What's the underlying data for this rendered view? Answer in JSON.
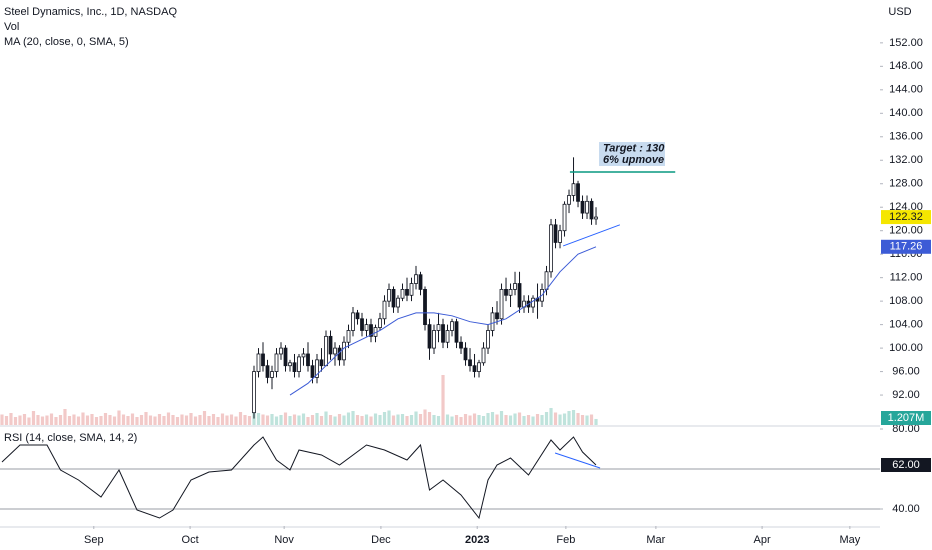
{
  "chart_data": {
    "type": "candlestick",
    "title": "Steel Dynamics, Inc., 1D, NASDAQ",
    "volume_label": "Vol",
    "ma_label": "MA (20, close, 0, SMA, 5)",
    "currency": "USD",
    "up_color": "#ffffff",
    "down_color": "#131722",
    "xlim": [
      -0.44,
      195.1
    ],
    "xticks": [
      {
        "value": 20.4,
        "label": "Sep"
      },
      {
        "value": 41.8,
        "label": "Oct"
      },
      {
        "value": 62.7,
        "label": "Nov"
      },
      {
        "value": 84.2,
        "label": "Dec"
      },
      {
        "value": 105.6,
        "label": "2023"
      },
      {
        "value": 125.3,
        "label": "Feb"
      },
      {
        "value": 145.3,
        "label": "Mar"
      },
      {
        "value": 168.9,
        "label": "Apr"
      },
      {
        "value": 188.4,
        "label": "May"
      }
    ],
    "ylim": [
      86.9,
      159.3
    ],
    "yticks": [
      {
        "value": 92,
        "label": "92.00"
      },
      {
        "value": 96,
        "label": "96.00"
      },
      {
        "value": 100,
        "label": "100.00"
      },
      {
        "value": 104,
        "label": "104.00"
      },
      {
        "value": 108,
        "label": "108.00"
      },
      {
        "value": 112,
        "label": "112.00"
      },
      {
        "value": 116,
        "label": "116.00"
      },
      {
        "value": 120,
        "label": "120.00"
      },
      {
        "value": 124,
        "label": "124.00"
      },
      {
        "value": 128,
        "label": "128.00"
      },
      {
        "value": 132,
        "label": "132.00"
      },
      {
        "value": 136,
        "label": "136.00"
      },
      {
        "value": 140,
        "label": "140.00"
      },
      {
        "value": 144,
        "label": "144.00"
      },
      {
        "value": 148,
        "label": "148.00"
      },
      {
        "value": 152,
        "label": "152.00"
      }
    ],
    "x": [
      56,
      57,
      58,
      59,
      60,
      61,
      62,
      63,
      64,
      65,
      66,
      67,
      68,
      69,
      70,
      71,
      72,
      73,
      74,
      75,
      76,
      77,
      78,
      79,
      80,
      81,
      82,
      83,
      84,
      85,
      86,
      87,
      88,
      89,
      90,
      91,
      92,
      93,
      94,
      95,
      96,
      97,
      98,
      99,
      100,
      101,
      102,
      103,
      104,
      105,
      106,
      107,
      108,
      109,
      110,
      111,
      112,
      113,
      114,
      115,
      116,
      117,
      118,
      119,
      120,
      121,
      122,
      123,
      124,
      125,
      126,
      127,
      128,
      129,
      130,
      131,
      132
    ],
    "open": [
      89,
      96,
      99,
      97,
      95,
      96,
      99,
      100,
      97,
      97.5,
      96,
      98.5,
      99,
      97,
      95,
      98,
      97,
      102,
      99,
      100,
      98,
      101,
      103,
      106,
      105,
      103,
      104,
      102,
      103.5,
      105,
      108,
      110,
      107,
      108.5,
      110,
      109,
      111,
      112.5,
      110,
      104,
      100,
      103,
      104,
      101,
      103,
      104.5,
      101,
      100,
      98,
      97,
      96,
      97.5,
      100,
      103,
      106,
      105,
      110,
      109,
      110,
      111,
      107,
      108,
      107,
      108.5,
      108,
      110,
      113,
      121,
      118,
      120,
      124.5,
      126,
      128,
      125,
      123,
      125,
      122
    ],
    "high": [
      97,
      100,
      101,
      98,
      97,
      100,
      101,
      100.5,
      98,
      99,
      99,
      100,
      101,
      98,
      99,
      100,
      103,
      103,
      101,
      100.5,
      102,
      104,
      107,
      106.5,
      106,
      105,
      105,
      104,
      106,
      109,
      111,
      110.5,
      109,
      111,
      112,
      112,
      114,
      113,
      110.5,
      105,
      104,
      106,
      105,
      104,
      105,
      105,
      102,
      101,
      100,
      99,
      98,
      101,
      104,
      107,
      108,
      111,
      112,
      111,
      113,
      113,
      109,
      109,
      109,
      111,
      111,
      114,
      122,
      122,
      121,
      125,
      127,
      132.5,
      128.5,
      126,
      126,
      125.5,
      124
    ],
    "low": [
      88,
      95,
      96,
      94,
      93,
      95,
      98,
      96,
      96,
      95,
      95,
      97,
      96,
      94,
      94,
      96,
      97,
      98,
      97,
      97,
      97,
      100,
      102,
      104,
      102,
      102,
      101,
      101,
      103,
      104,
      107,
      106,
      106,
      108,
      108,
      108,
      110,
      109,
      103,
      98,
      99,
      101,
      100,
      100,
      102,
      100,
      99,
      97,
      96,
      95,
      95,
      97,
      99,
      102,
      104,
      104,
      108,
      107,
      109,
      106,
      106,
      106,
      106,
      105,
      107,
      109,
      112,
      117,
      117,
      119,
      123,
      125,
      124,
      122,
      122,
      121,
      121
    ],
    "close": [
      96,
      99,
      97,
      95,
      96,
      99,
      100,
      97,
      97.5,
      96,
      98.5,
      99,
      97,
      95,
      98,
      97,
      102,
      99,
      100,
      98,
      101,
      103,
      106,
      105,
      103,
      104,
      102,
      103.5,
      105,
      108,
      110,
      107,
      108.5,
      110,
      109,
      111,
      112.5,
      110,
      104,
      100,
      103,
      104,
      101,
      103,
      104.5,
      101,
      100,
      98,
      97,
      96,
      97.5,
      100,
      103,
      106,
      105,
      110,
      109,
      110,
      111,
      107,
      108,
      107,
      108.5,
      108,
      110,
      113,
      121,
      118,
      120,
      124.5,
      126,
      128,
      125,
      123,
      125,
      122,
      122.32
    ],
    "ma": {
      "color": "#3c5bd6",
      "x": [
        64,
        68,
        72,
        76,
        80,
        84,
        88,
        92,
        96,
        100,
        104,
        108,
        112,
        116,
        120,
        124,
        128,
        132
      ],
      "values": [
        92,
        94,
        97,
        100,
        101.5,
        103,
        105,
        106,
        106,
        105.5,
        104.5,
        104,
        105,
        107,
        109,
        113,
        116,
        117.26
      ]
    },
    "last_price_color": "#f5e600",
    "volume": {
      "color": "#f2c9c8",
      "up_color": "#bfe3dc",
      "down_color": "#f2c9c8",
      "last_color": "#26a69a",
      "vlim": [
        0,
        85
      ],
      "last_label": "1.207M",
      "x": [
        0,
        1,
        2,
        3,
        4,
        5,
        6,
        7,
        8,
        9,
        10,
        11,
        12,
        13,
        14,
        15,
        16,
        17,
        18,
        19,
        20,
        21,
        22,
        23,
        24,
        25,
        26,
        27,
        28,
        29,
        30,
        31,
        32,
        33,
        34,
        35,
        36,
        37,
        38,
        39,
        40,
        41,
        42,
        43,
        44,
        45,
        46,
        47,
        48,
        49,
        50,
        51,
        52,
        53,
        54,
        55,
        56,
        57,
        58,
        59,
        60,
        61,
        62,
        63,
        64,
        65,
        66,
        67,
        68,
        69,
        70,
        71,
        72,
        73,
        74,
        75,
        76,
        77,
        78,
        79,
        80,
        81,
        82,
        83,
        84,
        85,
        86,
        87,
        88,
        89,
        90,
        91,
        92,
        93,
        94,
        95,
        96,
        97,
        98,
        99,
        100,
        101,
        102,
        103,
        104,
        105,
        106,
        107,
        108,
        109,
        110,
        111,
        112,
        113,
        114,
        115,
        116,
        117,
        118,
        119,
        120,
        121,
        122,
        123,
        124,
        125,
        126,
        127,
        128,
        129,
        130,
        131,
        132
      ],
      "values": [
        2.1,
        1.8,
        2.4,
        1.6,
        1.9,
        2.2,
        1.5,
        2.8,
        2.0,
        1.7,
        1.9,
        2.3,
        1.6,
        2.0,
        3.2,
        1.8,
        2.1,
        1.7,
        2.5,
        1.9,
        2.2,
        1.6,
        1.8,
        2.4,
        2.0,
        1.7,
        2.9,
        2.1,
        1.8,
        2.3,
        1.6,
        2.0,
        2.6,
        1.9,
        1.7,
        2.2,
        1.8,
        2.5,
        2.0,
        1.6,
        2.1,
        1.9,
        2.4,
        1.7,
        2.0,
        2.8,
        1.8,
        2.2,
        1.6,
        2.3,
        1.9,
        2.1,
        1.7,
        2.6,
        2.0,
        1.8,
        3.0,
        2.4,
        2.1,
        1.9,
        2.2,
        1.7,
        2.0,
        2.5,
        1.8,
        2.1,
        1.9,
        2.3,
        1.6,
        2.0,
        2.4,
        1.8,
        2.7,
        2.0,
        1.7,
        2.2,
        1.9,
        2.5,
        2.8,
        2.0,
        1.8,
        2.1,
        1.7,
        2.3,
        2.0,
        2.6,
        2.9,
        1.9,
        2.1,
        2.2,
        1.8,
        2.0,
        2.7,
        2.2,
        3.1,
        2.6,
        2.0,
        1.8,
        10.0,
        2.1,
        1.7,
        2.0,
        1.6,
        2.2,
        1.9,
        2.3,
        2.0,
        1.8,
        2.4,
        2.6,
        2.1,
        2.8,
        2.0,
        1.9,
        2.3,
        2.5,
        1.8,
        2.0,
        1.7,
        2.2,
        2.0,
        2.6,
        3.4,
        2.5,
        2.1,
        2.3,
        2.8,
        3.0,
        2.4,
        2.0,
        1.9,
        2.1,
        1.207
      ]
    },
    "target": {
      "text": "Target : 130",
      "subtext": "6% upmove",
      "level": 130,
      "x": [
        126.2,
        149.6
      ],
      "color": "#089981",
      "box_color": "#c8dbef"
    },
    "trendline": {
      "color": "#2962ff",
      "x": [
        124.7,
        137.3
      ],
      "y": [
        117.4,
        121.0
      ]
    },
    "rsi": {
      "label": "RSI (14, close, SMA, 14, 2)",
      "color": "#131722",
      "ylim": [
        32,
        80.5
      ],
      "yticks": [
        {
          "value": 80,
          "label": "80.00"
        },
        {
          "value": 40,
          "label": "40.00"
        }
      ],
      "bands": [
        60,
        40
      ],
      "x": [
        0,
        4,
        10,
        13,
        17,
        22,
        26,
        30,
        35,
        38,
        42,
        46,
        51,
        56,
        58,
        61,
        64,
        66,
        71,
        75,
        81,
        85,
        90,
        93,
        95,
        98,
        102,
        106,
        108,
        110,
        113,
        117,
        122,
        124,
        127,
        129,
        132
      ],
      "values": [
        63.5,
        72,
        72,
        59.5,
        54.5,
        46,
        59.5,
        39.5,
        35.5,
        39.5,
        54.5,
        58.5,
        59.5,
        72,
        76,
        64.5,
        59.5,
        69.5,
        67,
        62,
        72,
        69.5,
        64.5,
        72,
        49.5,
        54.5,
        47,
        35.5,
        54.5,
        62,
        65.5,
        57,
        74.5,
        69.5,
        76,
        68.5,
        62
      ],
      "value_labels": [
        null,
        null,
        null,
        null,
        null,
        null,
        null,
        null,
        null,
        null,
        null,
        null,
        null,
        null,
        null,
        null,
        null,
        null,
        null,
        null,
        null,
        null,
        null,
        null,
        null,
        null,
        null,
        null,
        null,
        null,
        null,
        null,
        null,
        null,
        null,
        null,
        "62.00"
      ],
      "trendline": {
        "color": "#2962ff",
        "x": [
          122.9,
          132.9
        ],
        "y": [
          68,
          60.5
        ]
      }
    }
  }
}
